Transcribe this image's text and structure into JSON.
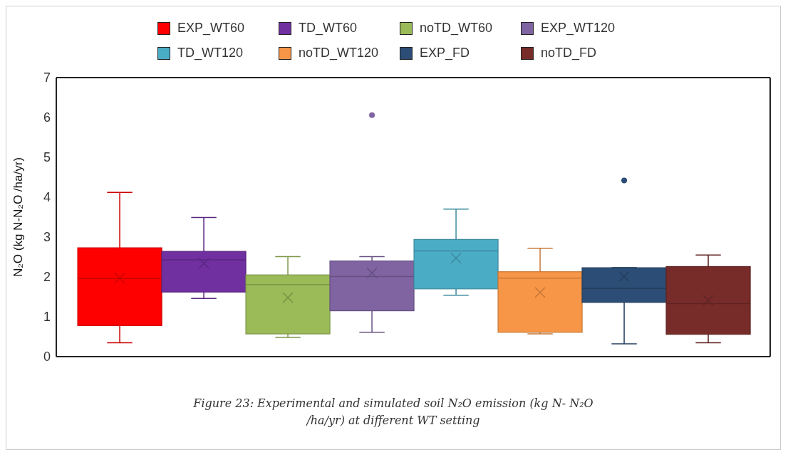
{
  "chart_data": {
    "type": "box",
    "ylabel": "N₂O (kg N-N₂O /ha/yr)",
    "categories": [
      null
    ],
    "ylim": [
      0,
      7
    ],
    "yticks": [
      0,
      1,
      2,
      3,
      4,
      5,
      6,
      7
    ],
    "legend": "top",
    "tick_labels": "y",
    "series": [
      {
        "name": "EXP_WT60",
        "color": "#ff0000",
        "boxes": [
          {
            "low": 0.35,
            "q1": 0.78,
            "median": 1.96,
            "q3": 2.73,
            "high": 4.12,
            "mean": 1.97
          }
        ]
      },
      {
        "name": "TD_WT60",
        "color": "#7030a0",
        "boxes": [
          {
            "low": 1.46,
            "q1": 1.62,
            "median": 2.43,
            "q3": 2.64,
            "high": 3.49,
            "mean": 2.34
          }
        ]
      },
      {
        "name": "noTD_WT60",
        "color": "#9bbb59",
        "boxes": [
          {
            "low": 0.48,
            "q1": 0.57,
            "median": 1.81,
            "q3": 2.05,
            "high": 2.51,
            "mean": 1.48
          }
        ]
      },
      {
        "name": "EXP_WT120",
        "color": "#8064a2",
        "boxes": [
          {
            "low": 0.61,
            "q1": 1.15,
            "median": 2.01,
            "q3": 2.4,
            "high": 2.51,
            "mean": 2.1,
            "outliers": [
              6.06
            ]
          }
        ]
      },
      {
        "name": "TD_WT120",
        "color": "#4bacc6",
        "boxes": [
          {
            "low": 1.54,
            "q1": 1.7,
            "median": 2.65,
            "q3": 2.94,
            "high": 3.7,
            "mean": 2.47
          }
        ]
      },
      {
        "name": "noTD_WT120",
        "color": "#f79646",
        "boxes": [
          {
            "low": 0.57,
            "q1": 0.61,
            "median": 1.97,
            "q3": 2.13,
            "high": 2.72,
            "mean": 1.61
          }
        ]
      },
      {
        "name": "EXP_FD",
        "color": "#2c4d75",
        "boxes": [
          {
            "low": 0.32,
            "q1": 1.36,
            "median": 1.71,
            "q3": 2.23,
            "high": 2.23,
            "mean": 2.01,
            "outliers": [
              4.42
            ]
          }
        ]
      },
      {
        "name": "noTD_FD",
        "color": "#772c2a",
        "boxes": [
          {
            "low": 0.35,
            "q1": 0.56,
            "median": 1.33,
            "q3": 2.26,
            "high": 2.55,
            "mean": 1.41
          }
        ]
      }
    ],
    "annotations": [
      "Figure 23: Experimental and simulated soil N₂O  emission (kg N- N₂O /ha/yr) at different WT setting"
    ]
  }
}
